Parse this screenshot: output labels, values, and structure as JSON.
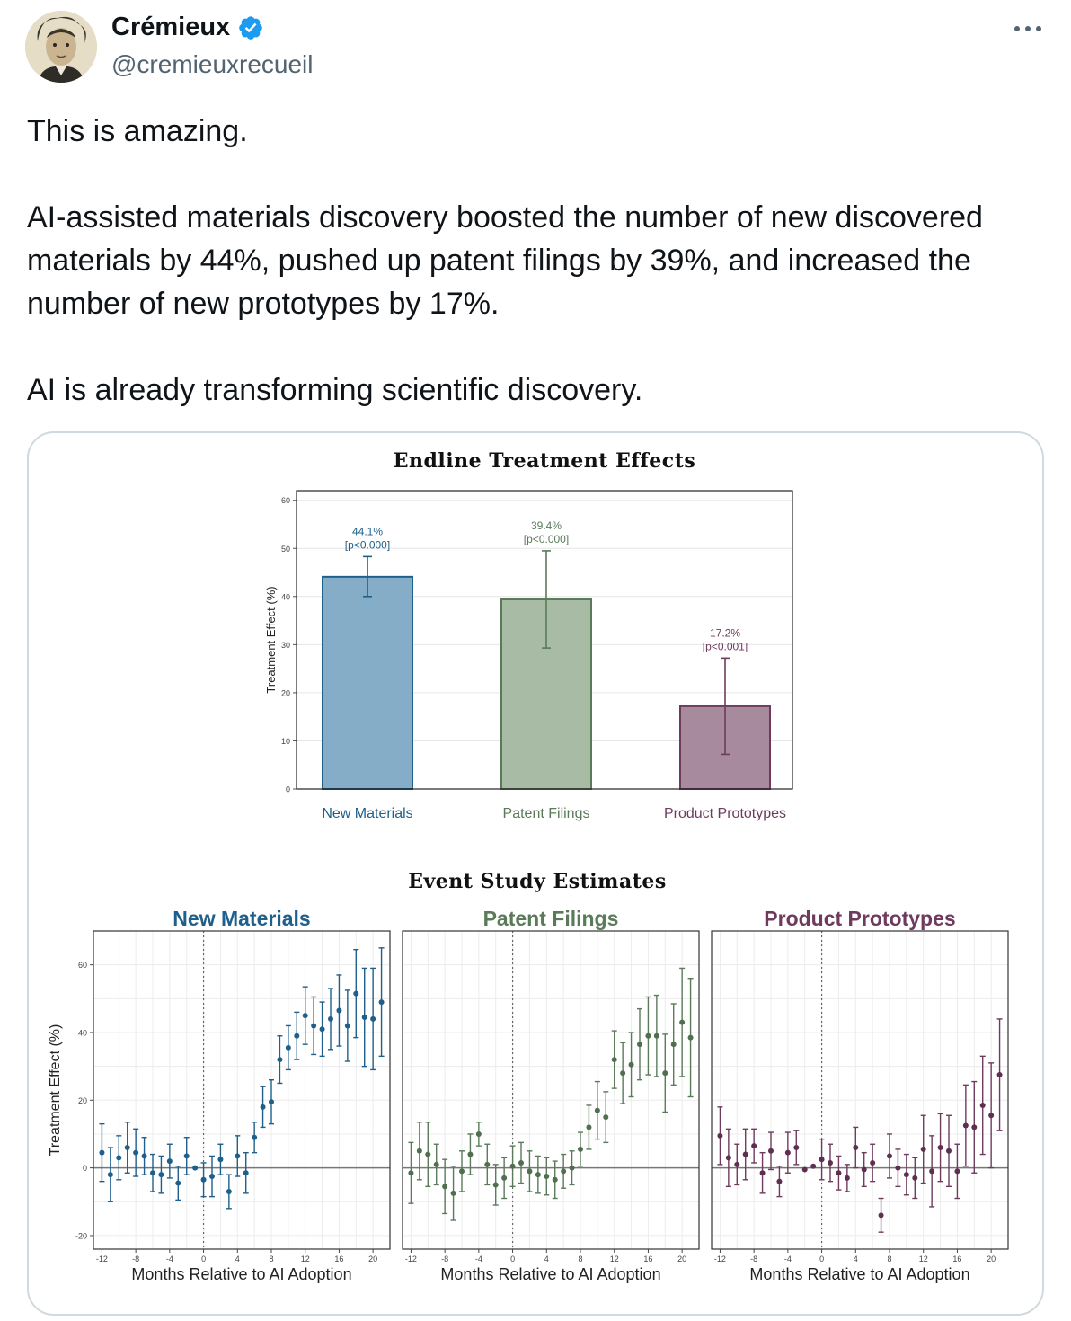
{
  "author": {
    "display_name": "Crémieux",
    "handle": "@cremieuxrecueil",
    "verified": true
  },
  "more_icon": "more-horizontal-icon",
  "tweet_text": "This is amazing.\n\nAI-assisted materials discovery boosted the number of new discovered materials by 44%, pushed up patent filings by 39%, and increased the number of new prototypes by 17%.\n\nAI is already transforming scientific discovery.",
  "colors": {
    "blue": "#1f5f8b",
    "blue_fill": "#86adc7",
    "green": "#5a7a5a",
    "green_fill": "#a8bca5",
    "purple": "#6e3b5e",
    "purple_fill": "#a78a9d",
    "verified": "#1d9bf0"
  },
  "chart_data": [
    {
      "type": "bar",
      "title": "Endline Treatment Effects",
      "ylabel": "Treatment Effect (%)",
      "ylim": [
        0,
        62
      ],
      "yticks": [
        0,
        10,
        20,
        30,
        40,
        50,
        60
      ],
      "categories": [
        "New Materials",
        "Patent Filings",
        "Product Prototypes"
      ],
      "values": [
        44.1,
        39.4,
        17.2
      ],
      "ci_low": [
        40.0,
        29.3,
        7.2
      ],
      "ci_high": [
        48.3,
        49.5,
        27.2
      ],
      "labels": [
        "44.1%",
        "39.4%",
        "17.2%"
      ],
      "pvalues": [
        "[p<0.000]",
        "[p<0.000]",
        "[p<0.001]"
      ],
      "grid": true
    },
    {
      "type": "scatter",
      "title": "Event Study Estimates",
      "xlabel": "Months Relative to AI Adoption",
      "ylabel": "Treatment Effect (%)",
      "xlim": [
        -13,
        22
      ],
      "ylim": [
        -24,
        70
      ],
      "xticks": [
        -12,
        -8,
        -4,
        0,
        4,
        8,
        12,
        16,
        20
      ],
      "yticks": [
        -20,
        0,
        20,
        40,
        60
      ],
      "panels": [
        {
          "name": "New Materials",
          "x": [
            -12,
            -11,
            -10,
            -9,
            -8,
            -7,
            -6,
            -5,
            -4,
            -3,
            -2,
            -1,
            0,
            1,
            2,
            3,
            4,
            5,
            6,
            7,
            8,
            9,
            10,
            11,
            12,
            13,
            14,
            15,
            16,
            17,
            18,
            19,
            20,
            21
          ],
          "y": [
            4.5,
            -2,
            3,
            6,
            4.5,
            3.5,
            -1.5,
            -2,
            2,
            -4.5,
            3.5,
            0,
            -3.5,
            -2.5,
            2.5,
            -7,
            3.5,
            -1.5,
            9,
            18,
            19.5,
            32,
            35.5,
            39,
            45,
            42,
            41,
            44,
            46.5,
            42,
            51.5,
            44.5,
            44,
            49
          ],
          "err": [
            8.5,
            8,
            6.5,
            7.5,
            7,
            5.5,
            5.5,
            5.5,
            5,
            5,
            5.5,
            0,
            5,
            6,
            4.5,
            5,
            6,
            6,
            4.5,
            6,
            6.5,
            7,
            6.5,
            7,
            8.5,
            8.5,
            8,
            9,
            10.5,
            10.5,
            13,
            14.5,
            15,
            16
          ]
        },
        {
          "name": "Patent Filings",
          "x": [
            -12,
            -11,
            -10,
            -9,
            -8,
            -7,
            -6,
            -5,
            -4,
            -3,
            -2,
            -1,
            0,
            1,
            2,
            3,
            4,
            5,
            6,
            7,
            8,
            9,
            10,
            11,
            12,
            13,
            14,
            15,
            16,
            17,
            18,
            19,
            20,
            21
          ],
          "y": [
            -1.5,
            5,
            4,
            1,
            -5.5,
            -7.5,
            -1,
            4,
            10,
            1,
            -5,
            -3,
            0.5,
            1.5,
            -1,
            -2,
            -2.5,
            -3.5,
            -1,
            0,
            5.5,
            12,
            17,
            15,
            32,
            28,
            30.5,
            36.5,
            39,
            39,
            28,
            36.5,
            43,
            38.5
          ],
          "err": [
            9,
            8.5,
            9.5,
            6,
            8,
            8,
            6,
            6,
            3.5,
            6,
            6,
            6,
            6,
            6,
            6,
            5.5,
            5.5,
            5.5,
            5,
            5,
            5,
            6.5,
            8.5,
            7.5,
            8.5,
            9,
            9.5,
            10.5,
            11.5,
            12,
            11.5,
            12,
            16,
            17.5
          ]
        },
        {
          "name": "Product Prototypes",
          "x": [
            -12,
            -11,
            -10,
            -9,
            -8,
            -7,
            -6,
            -5,
            -4,
            -3,
            -2,
            -1,
            0,
            1,
            2,
            3,
            4,
            5,
            6,
            7,
            8,
            9,
            10,
            11,
            12,
            13,
            14,
            15,
            16,
            17,
            18,
            19,
            20,
            21
          ],
          "y": [
            9.5,
            3,
            1,
            4,
            6.5,
            -1.5,
            5,
            -4,
            4.5,
            6,
            -0.5,
            0.5,
            2.5,
            1.5,
            -1.5,
            -3,
            6,
            -0.5,
            1.5,
            -14,
            3.5,
            0,
            -2,
            -3,
            5.5,
            -1,
            6,
            5,
            -1,
            12.5,
            12,
            18.5,
            15.5,
            27.5
          ],
          "err": [
            8.5,
            8.5,
            6,
            7.5,
            5,
            6,
            5.5,
            4.5,
            6,
            5,
            0,
            0,
            6,
            5.5,
            5,
            4,
            6,
            5,
            5.5,
            5,
            6.5,
            5.5,
            6,
            6,
            10,
            10.5,
            10,
            10.5,
            8,
            12,
            13.5,
            14.5,
            15.5,
            16.5
          ]
        }
      ],
      "grid": true
    }
  ]
}
